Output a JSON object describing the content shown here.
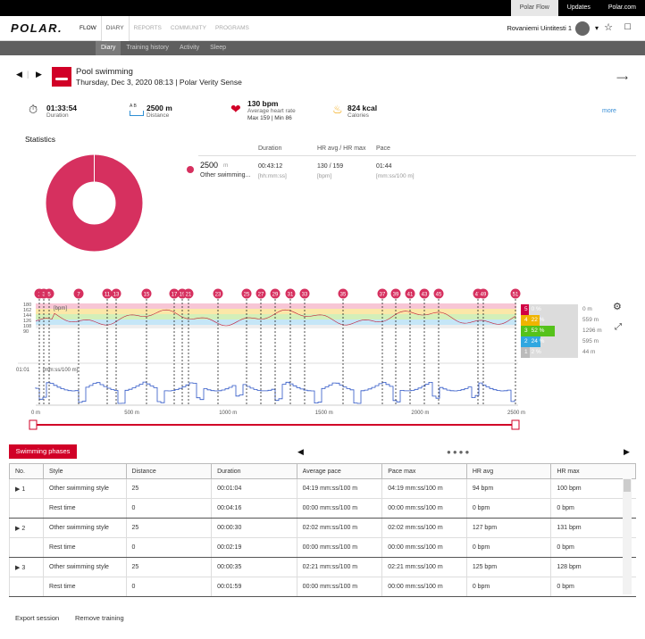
{
  "topbar": {
    "links": [
      "Polar Flow",
      "Updates",
      "Polar.com"
    ]
  },
  "header": {
    "logo": "POLAR.",
    "nav": [
      "FLOW",
      "DIARY",
      "REPORTS",
      "COMMUNITY",
      "PROGRAMS"
    ],
    "user": "Rovaniemi Uintitesti 1",
    "icons": [
      "avatar",
      "chevron-down-icon",
      "star-icon",
      "sync-icon"
    ]
  },
  "subnav": [
    "Diary",
    "Training history",
    "Activity",
    "Sleep"
  ],
  "session": {
    "title": "Pool swimming",
    "subtitle": "Thursday, Dec 3, 2020 08:13 | Polar Verity Sense",
    "duration": {
      "value": "01:33:54",
      "label": "Duration"
    },
    "distance": {
      "value": "2500 m",
      "label": "Distance",
      "icon_text": "A  B"
    },
    "heart_rate": {
      "value": "130 bpm",
      "label": "Average heart rate",
      "range": "Max 159  |  Min 86"
    },
    "calories": {
      "value": "824 kcal",
      "label": "Calories"
    },
    "more": "more"
  },
  "statistics": {
    "title": "Statistics",
    "headers": [
      "Duration",
      "HR avg / HR max",
      "Pace"
    ],
    "row": {
      "distance": "2500",
      "distance_unit": "m",
      "style": "Other swimming...",
      "duration": "00:43:12",
      "duration_unit": "[hh:mm:ss]",
      "hr": "130 / 159",
      "hr_unit": "[bpm]",
      "pace": "01:44",
      "pace_unit": "[mm:ss/100 m]"
    },
    "donut_color": "#d6305f"
  },
  "chart": {
    "hr_unit": "[bpm]",
    "pace_unit": "[mm:ss/100 m]",
    "pace_tick": "01:01",
    "hr_ticks": [
      "180",
      "162",
      "144",
      "126",
      "108",
      "90"
    ],
    "x_ticks": [
      "0 m",
      "500 m",
      "1000 m",
      "1500 m",
      "2000 m",
      "2500 m"
    ],
    "markers": [
      "1",
      "3",
      "5",
      "7",
      "11",
      "13",
      "15",
      "17",
      "19",
      "21",
      "23",
      "25",
      "27",
      "29",
      "31",
      "33",
      "35",
      "37",
      "39",
      "41",
      "43",
      "45",
      "47",
      "49",
      "51"
    ],
    "zones": [
      {
        "zone": "5",
        "pct": "0 %",
        "dist": "0 m",
        "color": "#d10044"
      },
      {
        "zone": "4",
        "pct": "22 %",
        "dist": "559 m",
        "color": "#f0b400"
      },
      {
        "zone": "3",
        "pct": "52 %",
        "dist": "1296 m",
        "color": "#55c21a"
      },
      {
        "zone": "2",
        "pct": "24 %",
        "dist": "595 m",
        "color": "#30a7e0"
      },
      {
        "zone": "1",
        "pct": "2 %",
        "dist": "44 m",
        "color": "#bbbbbb"
      }
    ]
  },
  "phases": {
    "button": "Swimming phases",
    "pager": "●●●●",
    "columns": [
      "No.",
      "Style",
      "Distance",
      "Duration",
      "Average pace",
      "Pace max",
      "HR avg",
      "HR max"
    ],
    "rows": [
      {
        "no": "1",
        "style": "Other swimming style",
        "distance": "25",
        "duration": "00:01:04",
        "avg_pace": "04:19 mm:ss/100 m",
        "pace_max": "04:19 mm:ss/100 m",
        "hr_avg": "94 bpm",
        "hr_max": "100 bpm"
      },
      {
        "no": "",
        "style": "Rest time",
        "distance": "0",
        "duration": "00:04:16",
        "avg_pace": "00:00 mm:ss/100 m",
        "pace_max": "00:00 mm:ss/100 m",
        "hr_avg": "0 bpm",
        "hr_max": "0 bpm"
      },
      {
        "no": "2",
        "style": "Other swimming style",
        "distance": "25",
        "duration": "00:00:30",
        "avg_pace": "02:02 mm:ss/100 m",
        "pace_max": "02:02 mm:ss/100 m",
        "hr_avg": "127 bpm",
        "hr_max": "131 bpm"
      },
      {
        "no": "",
        "style": "Rest time",
        "distance": "0",
        "duration": "00:02:19",
        "avg_pace": "00:00 mm:ss/100 m",
        "pace_max": "00:00 mm:ss/100 m",
        "hr_avg": "0 bpm",
        "hr_max": "0 bpm"
      },
      {
        "no": "3",
        "style": "Other swimming style",
        "distance": "25",
        "duration": "00:00:35",
        "avg_pace": "02:21 mm:ss/100 m",
        "pace_max": "02:21 mm:ss/100 m",
        "hr_avg": "125 bpm",
        "hr_max": "128 bpm"
      },
      {
        "no": "",
        "style": "Rest time",
        "distance": "0",
        "duration": "00:01:59",
        "avg_pace": "00:00 mm:ss/100 m",
        "pace_max": "00:00 mm:ss/100 m",
        "hr_avg": "0 bpm",
        "hr_max": "0 bpm"
      }
    ]
  },
  "footer": {
    "export": "Export session",
    "remove": "Remove training"
  }
}
